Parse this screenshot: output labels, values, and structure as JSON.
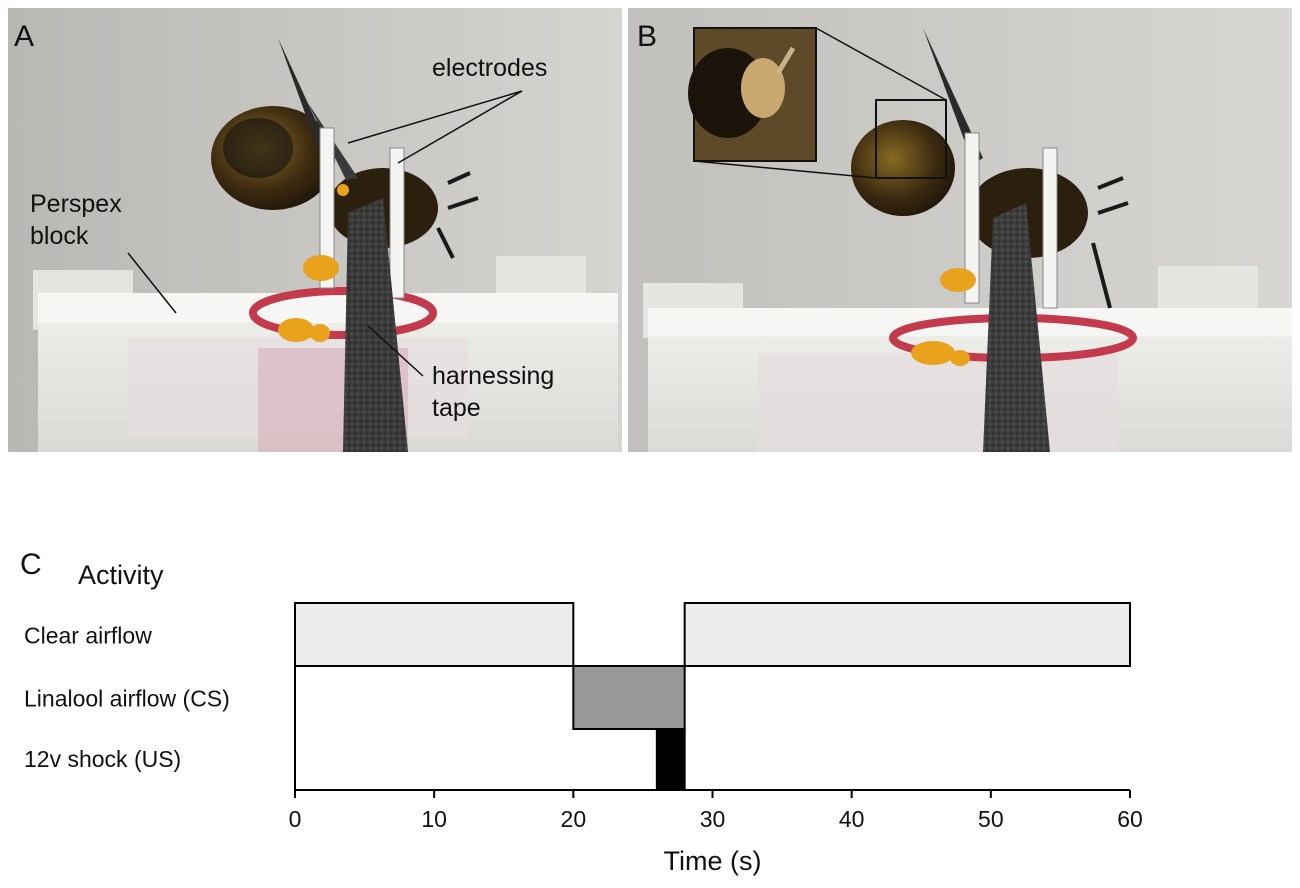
{
  "panels": {
    "a": {
      "label": "A",
      "annotations": {
        "electrodes": "electrodes",
        "perspex_line1": "Perspex",
        "perspex_line2": "block",
        "tape_line1": "harnessing",
        "tape_line2": "tape"
      }
    },
    "b": {
      "label": "B"
    },
    "c": {
      "label": "C",
      "title": "Activity"
    }
  },
  "colors": {
    "clear_airflow": "#ececec",
    "linalool_airflow": "#999999",
    "shock": "#000000",
    "photo_background": "#c9c7c4",
    "perspex": "#e9e9e6",
    "tape": "#3a3a3a",
    "pollen": "#e8a21c"
  },
  "chart_data": {
    "type": "timeline",
    "xlabel": "Time (s)",
    "xlim": [
      0,
      60
    ],
    "xticks": [
      0,
      10,
      20,
      30,
      40,
      50,
      60
    ],
    "rows": [
      {
        "label": "Clear airflow",
        "intervals": [
          [
            0,
            20
          ],
          [
            28,
            60
          ]
        ],
        "color": "#ececec"
      },
      {
        "label": "Linalool airflow (CS)",
        "intervals": [
          [
            20,
            28
          ]
        ],
        "color": "#999999"
      },
      {
        "label": "12v shock (US)",
        "intervals": [
          [
            26,
            28
          ]
        ],
        "color": "#000000"
      }
    ]
  }
}
